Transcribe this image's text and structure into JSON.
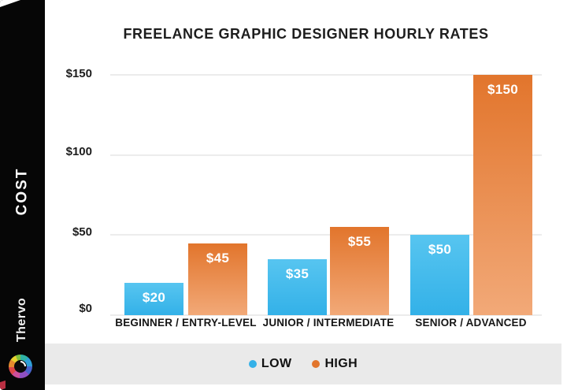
{
  "sidebar": {
    "axis_label": "COST",
    "brand": "Thervo",
    "logo_icon": "aperture-logo"
  },
  "chart_data": {
    "type": "bar",
    "title": "FREELANCE GRAPHIC DESIGNER HOURLY RATES",
    "xlabel": "",
    "ylabel": "COST",
    "ylim": [
      0,
      150
    ],
    "grid": true,
    "legend_position": "bottom",
    "categories": [
      "BEGINNER / ENTRY-LEVEL",
      "JUNIOR / INTERMEDIATE",
      "SENIOR / ADVANCED"
    ],
    "series": [
      {
        "name": "LOW",
        "color": "#35b1e8",
        "values": [
          20,
          35,
          50
        ],
        "labels": [
          "$20",
          "$35",
          "$50"
        ]
      },
      {
        "name": "HIGH",
        "color": "#e2752c",
        "values": [
          45,
          55,
          150
        ],
        "labels": [
          "$45",
          "$55",
          "$150"
        ]
      }
    ],
    "y_ticks": {
      "values": [
        0,
        50,
        100,
        150
      ],
      "labels": [
        "$0",
        "$50",
        "$100",
        "$150"
      ]
    }
  },
  "colors": {
    "low": "#35b1e8",
    "high": "#e2752c",
    "sidebar": "#060606",
    "footer": "#eaeaea",
    "gridline": "#ececec"
  }
}
